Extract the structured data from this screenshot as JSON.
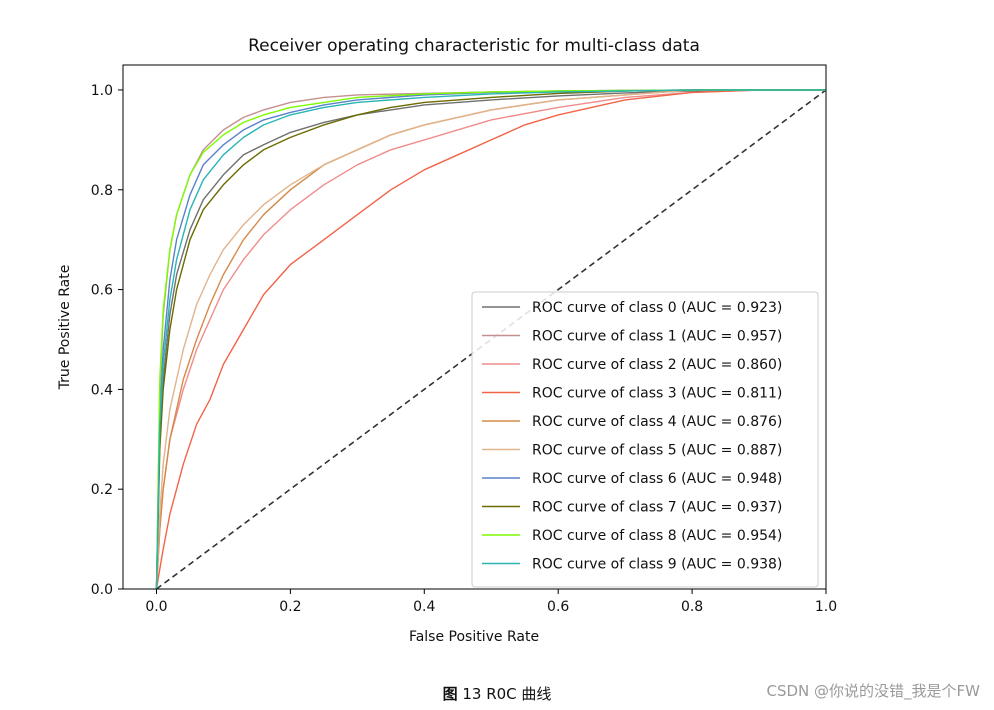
{
  "chart_data": {
    "type": "line",
    "title": "Receiver operating characteristic for multi-class data",
    "xlabel": "False Positive Rate",
    "ylabel": "True Positive Rate",
    "xlim": [
      -0.05,
      1.0
    ],
    "ylim": [
      0.0,
      1.05
    ],
    "xticks": [
      "0.0",
      "0.2",
      "0.4",
      "0.6",
      "0.8",
      "1.0"
    ],
    "yticks": [
      "0.0",
      "0.2",
      "0.4",
      "0.6",
      "0.8",
      "1.0"
    ],
    "grid": false,
    "legend_position": "lower-right",
    "diagonal": {
      "x": [
        0,
        1
      ],
      "y": [
        0,
        1
      ],
      "color": "#333333",
      "style": "dashed"
    },
    "series": [
      {
        "name": "ROC curve of class 0 (AUC = 0.923)",
        "color": "#707070",
        "x": [
          0,
          0.005,
          0.01,
          0.02,
          0.03,
          0.05,
          0.07,
          0.1,
          0.13,
          0.16,
          0.2,
          0.25,
          0.3,
          0.35,
          0.4,
          0.5,
          0.6,
          0.7,
          0.8,
          0.9,
          1.0
        ],
        "y": [
          0,
          0.3,
          0.42,
          0.55,
          0.63,
          0.72,
          0.78,
          0.83,
          0.87,
          0.89,
          0.915,
          0.935,
          0.95,
          0.96,
          0.97,
          0.98,
          0.988,
          0.994,
          0.998,
          1.0,
          1.0
        ]
      },
      {
        "name": "ROC curve of class 1 (AUC = 0.957)",
        "color": "#c49090",
        "x": [
          0,
          0.005,
          0.01,
          0.02,
          0.03,
          0.05,
          0.07,
          0.1,
          0.13,
          0.16,
          0.2,
          0.25,
          0.3,
          0.4,
          0.5,
          0.6,
          0.7,
          0.8,
          1.0
        ],
        "y": [
          0,
          0.4,
          0.55,
          0.68,
          0.75,
          0.83,
          0.88,
          0.92,
          0.945,
          0.96,
          0.975,
          0.985,
          0.99,
          0.993,
          0.996,
          0.998,
          0.999,
          1.0,
          1.0
        ]
      },
      {
        "name": "ROC curve of class 2 (AUC = 0.860)",
        "color": "#f08c8c",
        "x": [
          0,
          0.005,
          0.01,
          0.02,
          0.04,
          0.06,
          0.08,
          0.1,
          0.13,
          0.16,
          0.2,
          0.25,
          0.3,
          0.35,
          0.4,
          0.5,
          0.6,
          0.7,
          0.8,
          0.9,
          1.0
        ],
        "y": [
          0,
          0.12,
          0.2,
          0.3,
          0.4,
          0.48,
          0.54,
          0.6,
          0.66,
          0.71,
          0.76,
          0.81,
          0.85,
          0.88,
          0.9,
          0.94,
          0.965,
          0.985,
          0.995,
          1.0,
          1.0
        ]
      },
      {
        "name": "ROC curve of class 3 (AUC = 0.811)",
        "color": "#f26448",
        "x": [
          0,
          0.005,
          0.01,
          0.02,
          0.04,
          0.06,
          0.08,
          0.1,
          0.13,
          0.16,
          0.2,
          0.25,
          0.3,
          0.35,
          0.4,
          0.45,
          0.5,
          0.55,
          0.6,
          0.7,
          0.8,
          0.9,
          1.0
        ],
        "y": [
          0,
          0.04,
          0.08,
          0.15,
          0.25,
          0.33,
          0.38,
          0.45,
          0.52,
          0.59,
          0.65,
          0.7,
          0.75,
          0.8,
          0.84,
          0.87,
          0.9,
          0.93,
          0.95,
          0.98,
          0.995,
          1.0,
          1.0
        ]
      },
      {
        "name": "ROC curve of class 4 (AUC = 0.876)",
        "color": "#d58a4a",
        "x": [
          0,
          0.005,
          0.01,
          0.02,
          0.04,
          0.06,
          0.08,
          0.1,
          0.13,
          0.16,
          0.2,
          0.25,
          0.3,
          0.35,
          0.4,
          0.5,
          0.6,
          0.7,
          0.8,
          1.0
        ],
        "y": [
          0,
          0.12,
          0.2,
          0.3,
          0.42,
          0.5,
          0.57,
          0.63,
          0.7,
          0.75,
          0.8,
          0.85,
          0.88,
          0.91,
          0.93,
          0.96,
          0.98,
          0.99,
          1.0,
          1.0
        ]
      },
      {
        "name": "ROC curve of class 5 (AUC = 0.887)",
        "color": "#e0b48c",
        "x": [
          0,
          0.005,
          0.01,
          0.02,
          0.04,
          0.06,
          0.08,
          0.1,
          0.13,
          0.16,
          0.2,
          0.25,
          0.3,
          0.35,
          0.4,
          0.5,
          0.6,
          0.7,
          0.8,
          1.0
        ],
        "y": [
          0,
          0.15,
          0.25,
          0.36,
          0.48,
          0.57,
          0.63,
          0.68,
          0.73,
          0.77,
          0.81,
          0.85,
          0.88,
          0.91,
          0.93,
          0.96,
          0.98,
          0.99,
          1.0,
          1.0
        ]
      },
      {
        "name": "ROC curve of class 6 (AUC = 0.948)",
        "color": "#5a82c8",
        "x": [
          0,
          0.005,
          0.01,
          0.02,
          0.03,
          0.05,
          0.07,
          0.1,
          0.13,
          0.16,
          0.2,
          0.25,
          0.3,
          0.4,
          0.5,
          0.6,
          0.7,
          0.8,
          1.0
        ],
        "y": [
          0,
          0.35,
          0.48,
          0.62,
          0.7,
          0.79,
          0.85,
          0.89,
          0.92,
          0.94,
          0.955,
          0.97,
          0.98,
          0.99,
          0.995,
          0.998,
          0.999,
          1.0,
          1.0
        ]
      },
      {
        "name": "ROC curve of class 7 (AUC = 0.937)",
        "color": "#6b6b00",
        "x": [
          0,
          0.005,
          0.01,
          0.02,
          0.03,
          0.05,
          0.07,
          0.1,
          0.13,
          0.16,
          0.2,
          0.25,
          0.3,
          0.35,
          0.4,
          0.5,
          0.6,
          0.7,
          0.8,
          1.0
        ],
        "y": [
          0,
          0.28,
          0.4,
          0.52,
          0.6,
          0.7,
          0.76,
          0.81,
          0.85,
          0.88,
          0.905,
          0.93,
          0.95,
          0.965,
          0.975,
          0.985,
          0.993,
          0.998,
          1.0,
          1.0
        ]
      },
      {
        "name": "ROC curve of class 8 (AUC = 0.954)",
        "color": "#7cfc00",
        "x": [
          0,
          0.005,
          0.01,
          0.02,
          0.03,
          0.05,
          0.07,
          0.1,
          0.13,
          0.16,
          0.2,
          0.25,
          0.3,
          0.4,
          0.5,
          0.6,
          0.7,
          0.8,
          1.0
        ],
        "y": [
          0,
          0.42,
          0.56,
          0.68,
          0.75,
          0.83,
          0.875,
          0.91,
          0.935,
          0.95,
          0.965,
          0.975,
          0.985,
          0.992,
          0.996,
          0.998,
          0.999,
          1.0,
          1.0
        ]
      },
      {
        "name": "ROC curve of class 9 (AUC = 0.938)",
        "color": "#2ab4b4",
        "x": [
          0,
          0.005,
          0.01,
          0.02,
          0.03,
          0.05,
          0.07,
          0.1,
          0.13,
          0.16,
          0.2,
          0.25,
          0.3,
          0.4,
          0.5,
          0.6,
          0.7,
          0.8,
          1.0
        ],
        "y": [
          0,
          0.33,
          0.45,
          0.58,
          0.66,
          0.76,
          0.82,
          0.87,
          0.905,
          0.93,
          0.95,
          0.965,
          0.975,
          0.985,
          0.992,
          0.996,
          0.998,
          1.0,
          1.0
        ]
      }
    ]
  },
  "caption": {
    "figure_label": "图",
    "text": "13 R0C 曲线"
  },
  "watermark": "CSDN @你说的没错_我是个FW"
}
